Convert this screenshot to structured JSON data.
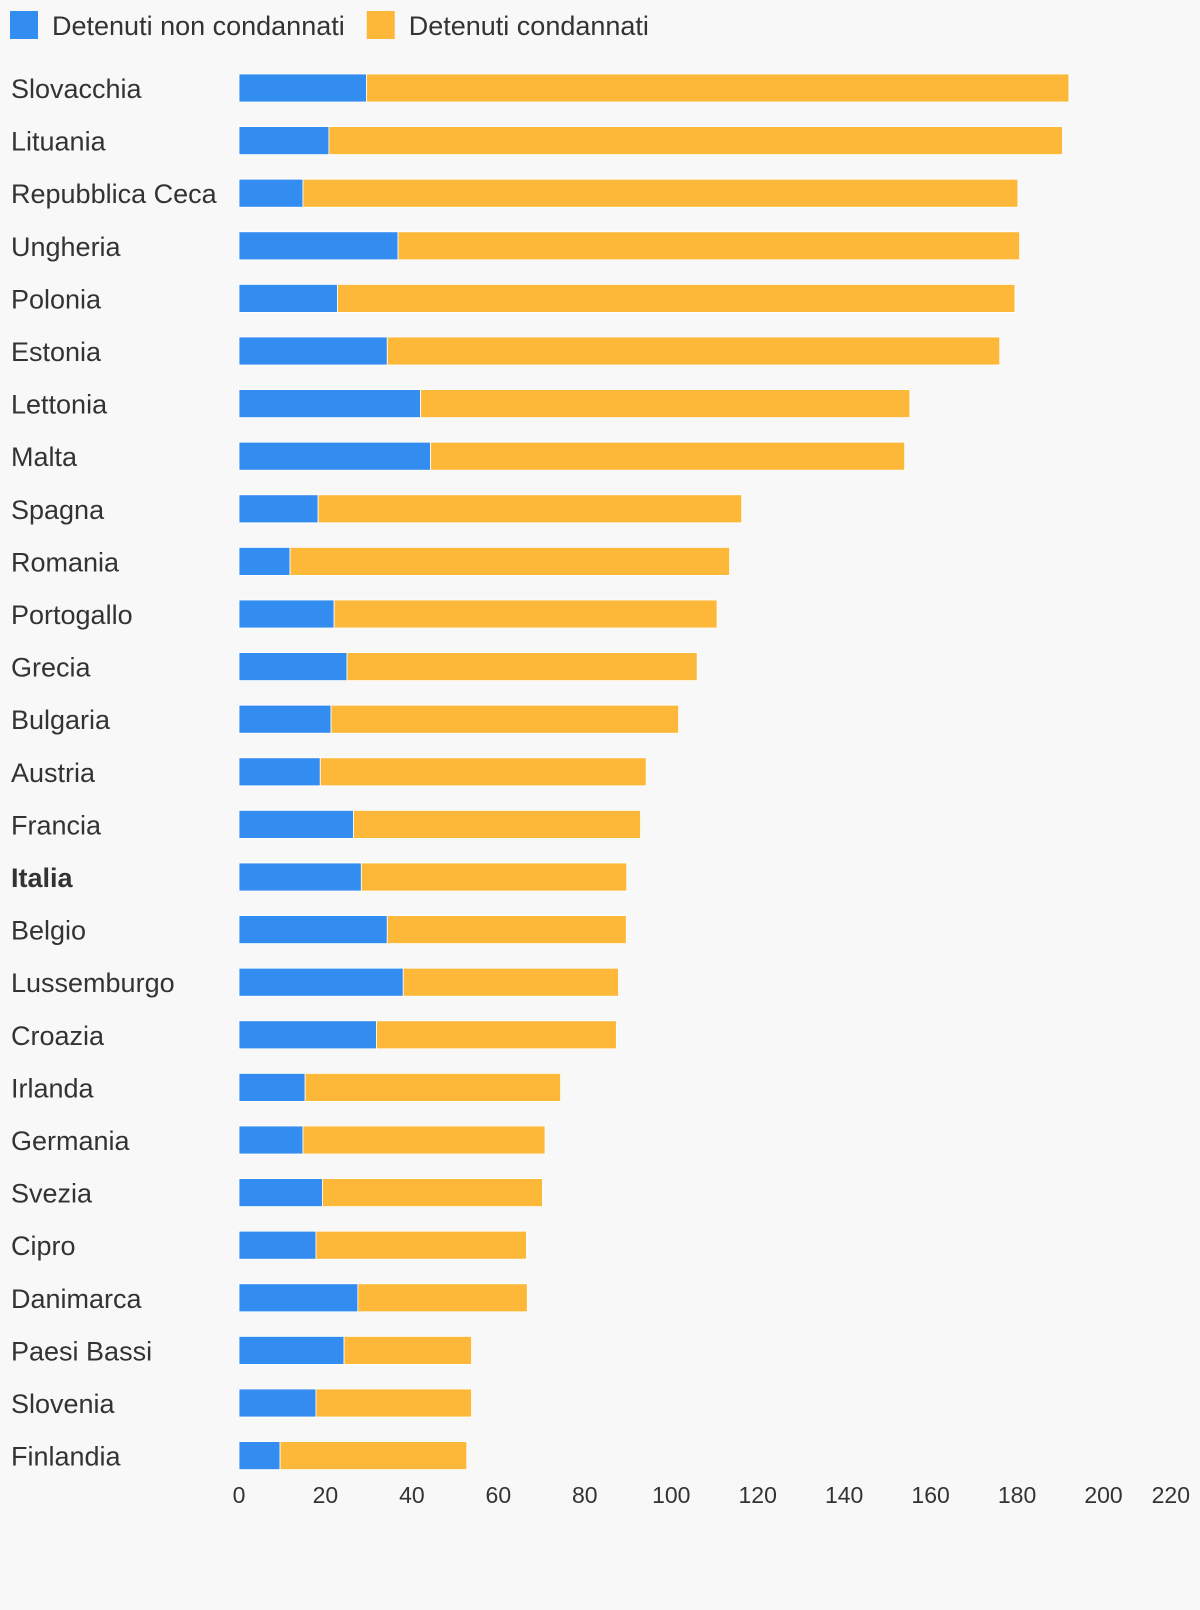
{
  "chart_data": {
    "type": "bar",
    "orientation": "horizontal",
    "stacked": true,
    "title": "",
    "xlabel": "",
    "ylabel": "",
    "xlim": [
      0,
      220
    ],
    "xticks": [
      0,
      20,
      40,
      60,
      80,
      100,
      120,
      140,
      160,
      180,
      200,
      220
    ],
    "grid": false,
    "legend_position": "top-left",
    "highlighted_category": "Italia",
    "categories": [
      "Slovacchia",
      "Lituania",
      "Repubblica Ceca",
      "Ungheria",
      "Polonia",
      "Estonia",
      "Lettonia",
      "Malta",
      "Spagna",
      "Romania",
      "Portogallo",
      "Grecia",
      "Bulgaria",
      "Austria",
      "Francia",
      "Italia",
      "Belgio",
      "Lussemburgo",
      "Croazia",
      "Irlanda",
      "Germania",
      "Svezia",
      "Cipro",
      "Danimarca",
      "Paesi Bassi",
      "Slovenia",
      "Finlandia"
    ],
    "series": [
      {
        "name": "Detenuti non condannati",
        "color": "#338cf0",
        "values": [
          29.5,
          20.8,
          14.8,
          36.8,
          22.8,
          34.3,
          42.0,
          44.3,
          18.3,
          11.8,
          22.0,
          25.0,
          21.3,
          18.8,
          26.5,
          28.3,
          34.3,
          38.0,
          31.8,
          15.3,
          14.8,
          19.3,
          17.8,
          27.5,
          24.3,
          17.8,
          9.5
        ]
      },
      {
        "name": "Detenuti condannati",
        "color": "#feb839",
        "values": [
          162.5,
          169.7,
          165.4,
          143.8,
          156.7,
          141.7,
          113.2,
          109.7,
          98.0,
          101.7,
          88.6,
          81.0,
          80.4,
          75.4,
          66.4,
          61.4,
          55.3,
          49.8,
          55.5,
          59.1,
          56.0,
          50.9,
          48.7,
          39.2,
          29.5,
          36.0,
          43.2
        ]
      }
    ]
  }
}
